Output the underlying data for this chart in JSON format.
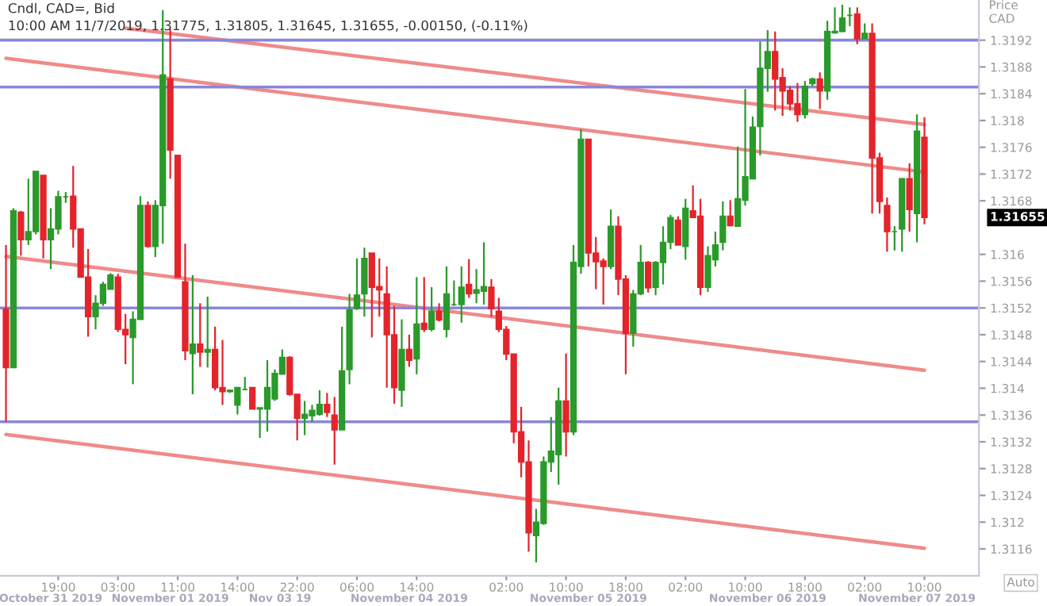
{
  "chart_data": {
    "type": "candlestick",
    "title": "Cndl, CAD=, Bid",
    "subtitle": "10:00 AM 11/7/2019, 1.31775, 1.31805, 1.31645, 1.31655, -0.00150, (-0.11%)",
    "ylabel": "Price\nCAD",
    "categories": [
      null,
      null,
      null,
      null,
      null,
      null,
      null,
      "19:00",
      null,
      null,
      null,
      null,
      null,
      null,
      null,
      "03:00",
      null,
      null,
      null,
      null,
      null,
      null,
      null,
      "11:00",
      null,
      null,
      null,
      null,
      null,
      null,
      null,
      "14:00",
      null,
      null,
      null,
      null,
      null,
      null,
      null,
      "22:00",
      null,
      null,
      null,
      null,
      null,
      null,
      null,
      "06:00",
      null,
      null,
      null,
      null,
      null,
      null,
      null,
      "14:00",
      null,
      null,
      null,
      null,
      null,
      null,
      null,
      null,
      null,
      null,
      null,
      "02:00",
      null,
      null,
      null,
      null,
      null,
      null,
      null,
      "10:00",
      null,
      null,
      null,
      null,
      null,
      null,
      null,
      "18:00",
      null,
      null,
      null,
      null,
      null,
      null,
      null,
      "02:00",
      null,
      null,
      null,
      null,
      null,
      null,
      null,
      "10:00",
      null,
      null,
      null,
      null,
      null,
      null,
      null,
      "18:00",
      null,
      null,
      null,
      null,
      null,
      null,
      null,
      "02:00",
      null,
      null,
      null,
      null,
      null,
      null,
      null,
      "10:00"
    ],
    "colors": [
      "#e3242b",
      "#2a9a2a",
      "#e3242b",
      "#2a9a2a",
      "#2a9a2a",
      "#e3242b",
      "#2a9a2a",
      "#2a9a2a",
      "#2a9a2a",
      "#e3242b",
      "#e3242b",
      "#e3242b",
      "#2a9a2a",
      "#2a9a2a",
      "#2a9a2a",
      "#e3242b",
      "#e3242b",
      "#2a9a2a",
      "#2a9a2a",
      "#e3242b",
      "#2a9a2a",
      "#2a9a2a",
      "#e3242b",
      "#e3242b",
      "#e3242b",
      "#2a9a2a",
      "#e3242b",
      "#2a9a2a",
      "#e3242b",
      "#e3242b",
      "#2a9a2a",
      "#2a9a2a",
      "#2a9a2a",
      "#e3242b",
      "#2a9a2a",
      "#2a9a2a",
      "#2a9a2a",
      "#2a9a2a",
      "#e3242b",
      "#e3242b",
      "#2a9a2a",
      "#2a9a2a",
      "#2a9a2a",
      "#e3242b",
      "#e3242b",
      "#2a9a2a",
      "#2a9a2a",
      "#2a9a2a",
      "#2a9a2a",
      "#e3242b",
      "#e3242b",
      "#e3242b",
      "#e3242b",
      "#2a9a2a",
      "#e3242b",
      "#2a9a2a",
      "#e3242b",
      "#2a9a2a",
      "#e3242b",
      "#2a9a2a",
      "#2a9a2a",
      "#2a9a2a",
      "#e3242b",
      "#2a9a2a",
      "#2a9a2a",
      "#e3242b",
      "#e3242b",
      "#e3242b",
      "#e3242b",
      "#e3242b",
      "#e3242b",
      "#2a9a2a",
      "#2a9a2a",
      "#2a9a2a",
      "#2a9a2a",
      "#e3242b",
      "#2a9a2a",
      "#2a9a2a",
      "#e3242b",
      "#e3242b",
      "#e3242b",
      "#2a9a2a",
      "#e3242b",
      "#e3242b",
      "#2a9a2a",
      "#2a9a2a",
      "#e3242b",
      "#2a9a2a",
      "#2a9a2a",
      "#2a9a2a",
      "#e3242b",
      "#2a9a2a",
      "#e3242b",
      "#e3242b",
      "#2a9a2a",
      "#2a9a2a",
      "#2a9a2a",
      "#e3242b",
      "#2a9a2a",
      "#2a9a2a",
      "#2a9a2a",
      "#2a9a2a",
      "#2a9a2a",
      "#e3242b",
      "#e3242b",
      "#e3242b",
      "#e3242b",
      "#2a9a2a",
      "#2a9a2a",
      "#e3242b",
      "#2a9a2a",
      "#2a9a2a",
      "#2a9a2a",
      "#2a9a2a",
      "#e3242b",
      "#2a9a2a",
      "#e3242b",
      "#e3242b",
      "#e3242b",
      "#2a9a2a",
      "#2a9a2a",
      "#e3242b",
      "#2a9a2a",
      "#e3242b"
    ],
    "ohlc": [
      [
        1.31518,
        1.31614,
        1.3135,
        1.31431
      ],
      [
        1.31431,
        1.31669,
        1.31431,
        1.31665
      ],
      [
        1.31663,
        1.31665,
        1.31598,
        1.31622
      ],
      [
        1.31622,
        1.31713,
        1.31614,
        1.31634
      ],
      [
        1.31634,
        1.31724,
        1.3163,
        1.31724
      ],
      [
        1.31718,
        1.31718,
        1.31594,
        1.31622
      ],
      [
        1.31622,
        1.31669,
        1.31578,
        1.31638
      ],
      [
        1.31638,
        1.31695,
        1.3163,
        1.31686
      ],
      [
        1.31686,
        1.31693,
        1.31677,
        1.31686
      ],
      [
        1.31687,
        1.31732,
        1.3161,
        1.31638
      ],
      [
        1.31638,
        1.31638,
        1.31566,
        1.31566
      ],
      [
        1.31566,
        1.31608,
        1.31477,
        1.31507
      ],
      [
        1.31507,
        1.31539,
        1.31488,
        1.31527
      ],
      [
        1.31527,
        1.31559,
        1.31523,
        1.31555
      ],
      [
        1.31548,
        1.31572,
        1.31548,
        1.31569
      ],
      [
        1.31566,
        1.31571,
        1.31484,
        1.31488
      ],
      [
        1.31488,
        1.31511,
        1.31436,
        1.3148
      ],
      [
        1.31476,
        1.31515,
        1.31406,
        1.31503
      ],
      [
        1.31503,
        1.31687,
        1.31503,
        1.31673
      ],
      [
        1.31673,
        1.31679,
        1.3161,
        1.31612
      ],
      [
        1.31612,
        1.31681,
        1.31596,
        1.31673
      ],
      [
        1.31673,
        1.31965,
        1.31616,
        1.31868
      ],
      [
        1.31862,
        1.31937,
        1.31713,
        1.31756
      ],
      [
        1.31748,
        1.31748,
        1.31566,
        1.31566
      ],
      [
        1.31559,
        1.31616,
        1.31442,
        1.31456
      ],
      [
        1.31452,
        1.31569,
        1.31391,
        1.31466
      ],
      [
        1.31466,
        1.31527,
        1.31432,
        1.31454
      ],
      [
        1.31454,
        1.31537,
        1.31431,
        1.31458
      ],
      [
        1.31458,
        1.31492,
        1.31397,
        1.31401
      ],
      [
        1.31401,
        1.31472,
        1.31375,
        1.31395
      ],
      [
        1.31395,
        1.31398,
        1.31393,
        1.31397
      ],
      [
        1.31375,
        1.31401,
        1.31361,
        1.31401
      ],
      [
        1.31398,
        1.31417,
        1.31397,
        1.31398
      ],
      [
        1.31401,
        1.31401,
        1.31369,
        1.31369
      ],
      [
        1.31369,
        1.31371,
        1.31326,
        1.31371
      ],
      [
        1.31369,
        1.31442,
        1.31335,
        1.31401
      ],
      [
        1.31384,
        1.31428,
        1.31381,
        1.31422
      ],
      [
        1.31421,
        1.31458,
        1.31421,
        1.31446
      ],
      [
        1.31446,
        1.31448,
        1.31389,
        1.31391
      ],
      [
        1.31391,
        1.31391,
        1.31322,
        1.31355
      ],
      [
        1.31355,
        1.31381,
        1.3133,
        1.31361
      ],
      [
        1.31359,
        1.31375,
        1.3135,
        1.31367
      ],
      [
        1.31361,
        1.31397,
        1.31359,
        1.31376
      ],
      [
        1.31376,
        1.31393,
        1.31357,
        1.31364
      ],
      [
        1.3136,
        1.31387,
        1.31286,
        1.31338
      ],
      [
        1.31338,
        1.31492,
        1.31338,
        1.31426
      ],
      [
        1.31428,
        1.31541,
        1.31406,
        1.31517
      ],
      [
        1.31519,
        1.31594,
        1.31517,
        1.31539
      ],
      [
        1.31541,
        1.3161,
        1.31507,
        1.31594
      ],
      [
        1.31602,
        1.31602,
        1.31476,
        1.31551
      ],
      [
        1.31552,
        1.31594,
        1.31507,
        1.31547
      ],
      [
        1.31541,
        1.31582,
        1.31401,
        1.3148
      ],
      [
        1.3148,
        1.31523,
        1.31377,
        1.31401
      ],
      [
        1.31397,
        1.31503,
        1.31372,
        1.31458
      ],
      [
        1.31458,
        1.3148,
        1.31432,
        1.31442
      ],
      [
        1.31444,
        1.31566,
        1.31421,
        1.31496
      ],
      [
        1.31497,
        1.31566,
        1.31484,
        1.31488
      ],
      [
        1.31488,
        1.31551,
        1.31485,
        1.31515
      ],
      [
        1.31515,
        1.31527,
        1.315,
        1.31502
      ],
      [
        1.31488,
        1.31582,
        1.31476,
        1.31541
      ],
      [
        1.31525,
        1.31561,
        1.31523,
        1.31525
      ],
      [
        1.31525,
        1.31582,
        1.31498,
        1.31551
      ],
      [
        1.31555,
        1.31593,
        1.31535,
        1.31541
      ],
      [
        1.31542,
        1.31578,
        1.31527,
        1.31547
      ],
      [
        1.31545,
        1.31618,
        1.31525,
        1.31552
      ],
      [
        1.31551,
        1.31563,
        1.31507,
        1.31519
      ],
      [
        1.31515,
        1.31535,
        1.31484,
        1.31488
      ],
      [
        1.31488,
        1.31493,
        1.31442,
        1.31451
      ],
      [
        1.31451,
        1.31451,
        1.31318,
        1.31335
      ],
      [
        1.31335,
        1.31372,
        1.31267,
        1.3129
      ],
      [
        1.3129,
        1.31322,
        1.31156,
        1.31184
      ],
      [
        1.3118,
        1.3122,
        1.3114,
        1.312
      ],
      [
        1.31198,
        1.31298,
        1.31196,
        1.3129
      ],
      [
        1.3129,
        1.31357,
        1.31275,
        1.31306
      ],
      [
        1.31301,
        1.31401,
        1.31256,
        1.31381
      ],
      [
        1.31381,
        1.31452,
        1.31298,
        1.31335
      ],
      [
        1.31335,
        1.31614,
        1.3133,
        1.31588
      ],
      [
        1.31582,
        1.31787,
        1.31571,
        1.31772
      ],
      [
        1.31772,
        1.31772,
        1.31582,
        1.31602
      ],
      [
        1.31602,
        1.31626,
        1.31548,
        1.31589
      ],
      [
        1.3159,
        1.31594,
        1.31525,
        1.31582
      ],
      [
        1.31582,
        1.31667,
        1.31578,
        1.31642
      ],
      [
        1.31642,
        1.31657,
        1.31539,
        1.31563
      ],
      [
        1.31563,
        1.31569,
        1.31421,
        1.31482
      ],
      [
        1.31482,
        1.31547,
        1.31462,
        1.31541
      ],
      [
        1.31541,
        1.31614,
        1.31539,
        1.31588
      ],
      [
        1.31588,
        1.3159,
        1.31543,
        1.3155
      ],
      [
        1.31551,
        1.3159,
        1.31539,
        1.31588
      ],
      [
        1.31588,
        1.31642,
        1.31555,
        1.31618
      ],
      [
        1.31618,
        1.31659,
        1.31608,
        1.31655
      ],
      [
        1.31651,
        1.31657,
        1.31614,
        1.31614
      ],
      [
        1.31612,
        1.31683,
        1.31592,
        1.31669
      ],
      [
        1.31665,
        1.31703,
        1.31655,
        1.31655
      ],
      [
        1.31657,
        1.31683,
        1.31539,
        1.31551
      ],
      [
        1.31551,
        1.31612,
        1.31544,
        1.31598
      ],
      [
        1.31592,
        1.31634,
        1.31582,
        1.31614
      ],
      [
        1.31618,
        1.31679,
        1.31606,
        1.31657
      ],
      [
        1.31657,
        1.31681,
        1.31642,
        1.31643
      ],
      [
        1.31642,
        1.31761,
        1.31642,
        1.31683
      ],
      [
        1.31681,
        1.31847,
        1.31673,
        1.31716
      ],
      [
        1.31713,
        1.31806,
        1.31713,
        1.3179
      ],
      [
        1.31791,
        1.31918,
        1.31748,
        1.31878
      ],
      [
        1.31878,
        1.31935,
        1.31843,
        1.31903
      ],
      [
        1.31903,
        1.31933,
        1.31815,
        1.31862
      ],
      [
        1.31864,
        1.31878,
        1.31807,
        1.31844
      ],
      [
        1.31845,
        1.31851,
        1.31815,
        1.31825
      ],
      [
        1.31825,
        1.31856,
        1.31798,
        1.31809
      ],
      [
        1.31809,
        1.31859,
        1.31803,
        1.31851
      ],
      [
        1.31855,
        1.31864,
        1.31851,
        1.31862
      ],
      [
        1.31862,
        1.31872,
        1.31817,
        1.31844
      ],
      [
        1.31844,
        1.31949,
        1.31831,
        1.31933
      ],
      [
        1.31931,
        1.31969,
        1.3193,
        1.31933
      ],
      [
        1.31933,
        1.31973,
        1.31932,
        1.31953
      ],
      [
        1.31957,
        1.31969,
        1.31941,
        1.31957
      ],
      [
        1.31959,
        1.31969,
        1.31914,
        1.31922
      ],
      [
        1.31922,
        1.31945,
        1.31922,
        1.3193
      ],
      [
        1.3193,
        1.31945,
        1.31661,
        1.31744
      ],
      [
        1.31744,
        1.31752,
        1.31661,
        1.31679
      ],
      [
        1.31673,
        1.31685,
        1.31604,
        1.31634
      ],
      [
        1.31634,
        1.31642,
        1.31606,
        1.31634
      ],
      [
        1.31638,
        1.31714,
        1.31604,
        1.31713
      ],
      [
        1.31713,
        1.31736,
        1.31634,
        1.31667
      ],
      [
        1.31661,
        1.31809,
        1.31618,
        1.31784
      ],
      [
        1.31775,
        1.31805,
        1.31645,
        1.31655
      ]
    ],
    "series": [
      {
        "type": "line",
        "color": "#f08a8a",
        "values": [
          null,
          null,
          null,
          null,
          null,
          null,
          null,
          null,
          null,
          null,
          null,
          null,
          null,
          null,
          null,
          null,
          1.31938,
          null,
          null,
          null,
          null,
          null,
          null,
          null,
          null,
          null,
          null,
          null,
          null,
          null,
          null,
          null,
          null,
          null,
          null,
          null,
          null,
          null,
          null,
          null,
          null,
          null,
          null,
          null,
          null,
          null,
          null,
          null,
          null,
          null,
          null,
          null,
          null,
          null,
          null,
          null,
          null,
          null,
          null,
          null,
          null,
          null,
          null,
          null,
          null,
          null,
          null,
          null,
          null,
          null,
          null,
          null,
          null,
          null,
          null,
          null,
          null,
          null,
          null,
          null,
          null,
          null,
          null,
          null,
          null,
          null,
          null,
          null,
          null,
          null,
          null,
          null,
          null,
          null,
          null,
          null,
          null,
          null,
          null,
          null,
          null,
          null,
          null,
          null,
          null,
          null,
          null,
          null,
          null,
          null,
          null,
          null,
          null,
          null,
          null,
          null,
          null,
          null,
          null,
          null,
          null,
          null,
          null,
          1.31794
        ]
      },
      {
        "type": "line",
        "color": "#f08a8a",
        "values": [
          1.31893,
          null,
          null,
          null,
          null,
          null,
          null,
          null,
          null,
          null,
          null,
          null,
          null,
          null,
          null,
          null,
          null,
          null,
          null,
          null,
          null,
          null,
          null,
          null,
          null,
          null,
          null,
          null,
          null,
          null,
          null,
          null,
          null,
          null,
          null,
          null,
          null,
          null,
          null,
          null,
          null,
          null,
          null,
          null,
          null,
          null,
          null,
          null,
          null,
          null,
          null,
          null,
          null,
          null,
          null,
          null,
          null,
          null,
          null,
          null,
          null,
          null,
          null,
          null,
          null,
          null,
          null,
          null,
          null,
          null,
          null,
          null,
          null,
          null,
          null,
          null,
          null,
          null,
          null,
          null,
          null,
          null,
          null,
          null,
          null,
          null,
          null,
          null,
          null,
          null,
          null,
          null,
          null,
          null,
          null,
          null,
          null,
          null,
          null,
          null,
          null,
          null,
          null,
          null,
          null,
          null,
          null,
          null,
          null,
          null,
          null,
          null,
          null,
          null,
          null,
          null,
          null,
          null,
          null,
          null,
          null,
          null,
          null,
          1.31723
        ]
      },
      {
        "type": "line",
        "color": "#f08a8a",
        "values": [
          1.31597,
          null,
          null,
          null,
          null,
          null,
          null,
          null,
          null,
          null,
          null,
          null,
          null,
          null,
          null,
          null,
          null,
          null,
          null,
          null,
          null,
          null,
          null,
          null,
          null,
          null,
          null,
          null,
          null,
          null,
          null,
          null,
          null,
          null,
          null,
          null,
          null,
          null,
          null,
          null,
          null,
          null,
          null,
          null,
          null,
          null,
          null,
          null,
          null,
          null,
          null,
          null,
          null,
          null,
          null,
          null,
          null,
          null,
          null,
          null,
          null,
          null,
          null,
          null,
          null,
          null,
          null,
          null,
          null,
          null,
          null,
          null,
          null,
          null,
          null,
          null,
          null,
          null,
          null,
          null,
          null,
          null,
          null,
          null,
          null,
          null,
          null,
          null,
          null,
          null,
          null,
          null,
          null,
          null,
          null,
          null,
          null,
          null,
          null,
          null,
          null,
          null,
          null,
          null,
          null,
          null,
          null,
          null,
          null,
          null,
          null,
          null,
          null,
          null,
          null,
          null,
          null,
          null,
          null,
          null,
          null,
          null,
          null,
          1.31427
        ]
      },
      {
        "type": "line",
        "color": "#f08a8a",
        "values": [
          1.31331,
          null,
          null,
          null,
          null,
          null,
          null,
          null,
          null,
          null,
          null,
          null,
          null,
          null,
          null,
          null,
          null,
          null,
          null,
          null,
          null,
          null,
          null,
          null,
          null,
          null,
          null,
          null,
          null,
          null,
          null,
          null,
          null,
          null,
          null,
          null,
          null,
          null,
          null,
          null,
          null,
          null,
          null,
          null,
          null,
          null,
          null,
          null,
          null,
          null,
          null,
          null,
          null,
          null,
          null,
          null,
          null,
          null,
          null,
          null,
          null,
          null,
          null,
          null,
          null,
          null,
          null,
          null,
          null,
          null,
          null,
          null,
          null,
          null,
          null,
          null,
          null,
          null,
          null,
          null,
          null,
          null,
          null,
          null,
          null,
          null,
          null,
          null,
          null,
          null,
          null,
          null,
          null,
          null,
          null,
          null,
          null,
          null,
          null,
          null,
          null,
          null,
          null,
          null,
          null,
          null,
          null,
          null,
          null,
          null,
          null,
          null,
          null,
          null,
          null,
          null,
          null,
          null,
          null,
          null,
          null,
          null,
          null,
          1.31161
        ]
      }
    ],
    "ref_lines": [
      {
        "axis": "y",
        "value": 1.3192,
        "color": "#8a86d8"
      },
      {
        "axis": "y",
        "value": 1.3185,
        "color": "#8a86d8"
      },
      {
        "axis": "y",
        "value": 1.3152,
        "color": "#8a86d8"
      },
      {
        "axis": "y",
        "value": 1.3135,
        "color": "#8a86d8"
      }
    ],
    "ylim": [
      1.3112,
      1.3198
    ],
    "yticks": [
      1.3116,
      1.312,
      1.3124,
      1.3128,
      1.3132,
      1.3136,
      1.314,
      1.3144,
      1.3148,
      1.3152,
      1.3156,
      1.316,
      1.3168,
      1.3172,
      1.3176,
      1.318,
      1.3184,
      1.3188,
      1.3192
    ],
    "annotations": [
      "October 31 2019",
      "November 01 2019",
      "Nov 03 19",
      "November 04 2019",
      "November 05 2019",
      "November 06 2019",
      "November 07 2019",
      "1.31655",
      "Auto"
    ]
  }
}
